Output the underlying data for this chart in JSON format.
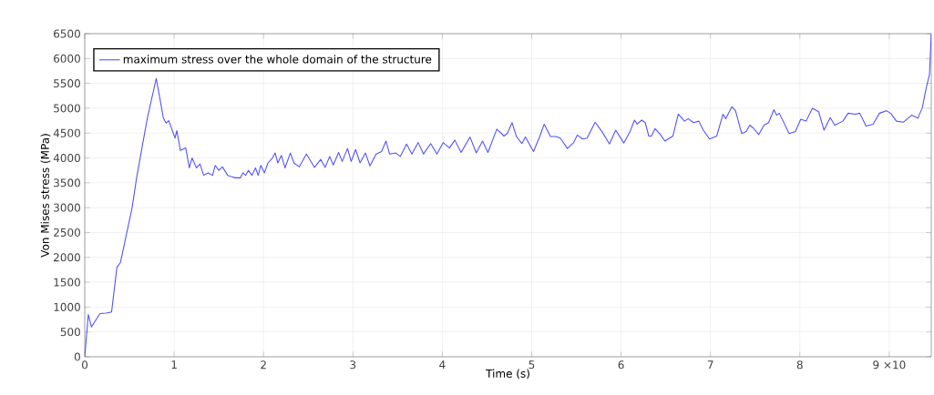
{
  "chart_data": {
    "type": "line",
    "xlabel": "Time (s)",
    "ylabel": "Von Mises stress (MPa)",
    "xlim": [
      0,
      9.47
    ],
    "ylim": [
      0,
      6500
    ],
    "xticks": [
      0,
      1,
      2,
      3,
      4,
      5,
      6,
      7,
      8,
      {
        "value": 9,
        "label": "9 ×10"
      }
    ],
    "yticks": [
      0,
      500,
      1000,
      1500,
      2000,
      2500,
      3000,
      3500,
      4000,
      4500,
      5000,
      5500,
      6000,
      6500
    ],
    "grid": true,
    "legend": "top left",
    "marker": "none",
    "line_style": "solid",
    "series": [
      {
        "name": "maximum stress over the whole domain of the structure",
        "color": "#5050ff",
        "x": [
          0,
          0.04,
          0.075,
          0.17,
          0.24,
          0.3,
          0.36,
          0.4,
          0.53,
          0.58,
          0.64,
          0.7,
          0.8,
          0.88,
          0.91,
          0.94,
          1.01,
          1.03,
          1.07,
          1.13,
          1.17,
          1.2,
          1.25,
          1.29,
          1.33,
          1.38,
          1.43,
          1.46,
          1.5,
          1.54,
          1.6,
          1.68,
          1.74,
          1.77,
          1.8,
          1.83,
          1.87,
          1.91,
          1.94,
          1.97,
          2.01,
          2.05,
          2.1,
          2.13,
          2.16,
          2.2,
          2.24,
          2.3,
          2.34,
          2.4,
          2.48,
          2.57,
          2.64,
          2.69,
          2.74,
          2.78,
          2.84,
          2.88,
          2.94,
          2.98,
          3.03,
          3.08,
          3.14,
          3.19,
          3.26,
          3.32,
          3.37,
          3.41,
          3.48,
          3.53,
          3.6,
          3.66,
          3.73,
          3.79,
          3.87,
          3.94,
          4.01,
          4.08,
          4.14,
          4.21,
          4.31,
          4.38,
          4.45,
          4.51,
          4.61,
          4.69,
          4.73,
          4.78,
          4.83,
          4.89,
          4.93,
          5.02,
          5.09,
          5.14,
          5.21,
          5.27,
          5.32,
          5.4,
          5.47,
          5.51,
          5.57,
          5.62,
          5.71,
          5.79,
          5.87,
          5.94,
          6.03,
          6.1,
          6.15,
          6.18,
          6.23,
          6.27,
          6.31,
          6.34,
          6.38,
          6.44,
          6.49,
          6.58,
          6.64,
          6.71,
          6.75,
          6.81,
          6.87,
          6.92,
          6.99,
          7.07,
          7.14,
          7.17,
          7.24,
          7.28,
          7.35,
          7.4,
          7.44,
          7.48,
          7.54,
          7.6,
          7.65,
          7.71,
          7.74,
          7.77,
          7.88,
          7.95,
          8.01,
          8.07,
          8.14,
          8.21,
          8.27,
          8.34,
          8.39,
          8.48,
          8.54,
          8.62,
          8.67,
          8.74,
          8.82,
          8.89,
          8.97,
          9.02,
          9.08,
          9.16,
          9.25,
          9.32,
          9.37,
          9.41,
          9.45,
          9.47
        ],
        "values": [
          0,
          850,
          600,
          870,
          880,
          900,
          1800,
          1900,
          3000,
          3600,
          4200,
          4800,
          5600,
          4800,
          4700,
          4750,
          4400,
          4550,
          4150,
          4200,
          3800,
          4000,
          3800,
          3880,
          3650,
          3700,
          3650,
          3850,
          3750,
          3820,
          3650,
          3600,
          3600,
          3700,
          3650,
          3750,
          3650,
          3800,
          3650,
          3850,
          3700,
          3900,
          4000,
          4100,
          3900,
          4050,
          3800,
          4100,
          3900,
          3820,
          4080,
          3810,
          3970,
          3810,
          4030,
          3860,
          4110,
          3930,
          4190,
          3930,
          4170,
          3900,
          4100,
          3840,
          4080,
          4130,
          4340,
          4080,
          4100,
          4030,
          4280,
          4080,
          4310,
          4080,
          4290,
          4080,
          4310,
          4200,
          4360,
          4110,
          4420,
          4100,
          4340,
          4110,
          4580,
          4440,
          4500,
          4710,
          4430,
          4290,
          4420,
          4130,
          4430,
          4680,
          4430,
          4430,
          4400,
          4190,
          4310,
          4460,
          4380,
          4400,
          4720,
          4520,
          4280,
          4560,
          4300,
          4530,
          4760,
          4680,
          4760,
          4710,
          4440,
          4440,
          4590,
          4470,
          4340,
          4440,
          4880,
          4740,
          4790,
          4710,
          4740,
          4560,
          4380,
          4440,
          4880,
          4790,
          5030,
          4950,
          4490,
          4530,
          4660,
          4600,
          4470,
          4660,
          4710,
          4970,
          4860,
          4900,
          4490,
          4530,
          4780,
          4740,
          5000,
          4930,
          4560,
          4810,
          4660,
          4740,
          4900,
          4880,
          4900,
          4640,
          4680,
          4900,
          4950,
          4890,
          4740,
          4720,
          4860,
          4800,
          5010,
          5380,
          5680,
          6500
        ]
      }
    ]
  }
}
